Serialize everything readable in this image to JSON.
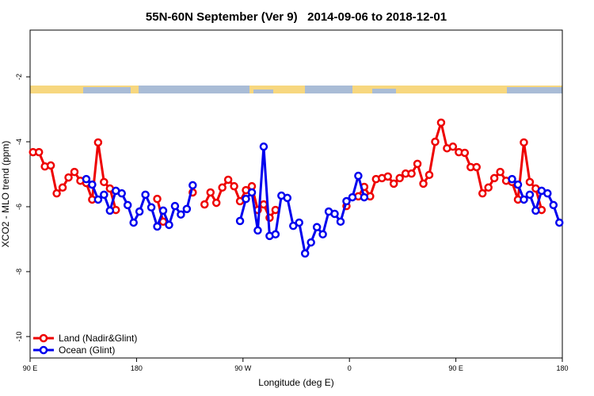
{
  "chart_data": {
    "type": "line",
    "title": "55N-60N September (Ver 9)   2014-09-06 to 2018-12-01",
    "xlabel": "Longitude (deg E)",
    "ylabel": "XCO2 - MLO trend (ppm)",
    "x": [
      92.5,
      97.5,
      102.5,
      107.5,
      112.5,
      117.5,
      122.5,
      127.5,
      132.5,
      137.5,
      142.5,
      147.5,
      152.5,
      157.5,
      162.5,
      167.5,
      172.5,
      177.5,
      182.5,
      187.5,
      192.5,
      197.5,
      202.5,
      207.5,
      212.5,
      217.5,
      222.5,
      227.5,
      232.5,
      237.5,
      242.5,
      247.5,
      252.5,
      257.5,
      262.5,
      267.5,
      272.5,
      277.5,
      282.5,
      287.5,
      292.5,
      297.5,
      302.5,
      307.5,
      312.5,
      317.5,
      322.5,
      327.5,
      332.5,
      337.5,
      342.5,
      347.5,
      352.5,
      357.5,
      362.5,
      367.5,
      372.5,
      377.5,
      382.5,
      387.5,
      392.5,
      397.5,
      402.5,
      407.5,
      412.5,
      417.5,
      422.5,
      427.5,
      432.5,
      437.5,
      442.5,
      447.5,
      452.5,
      457.5,
      462.5,
      467.5,
      472.5,
      477.5,
      482.5,
      487.5,
      492.5,
      497.5,
      502.5,
      507.5,
      512.5,
      517.5,
      522.5,
      527.5,
      532.5,
      537.5
    ],
    "series": [
      {
        "name": "Land (Nadir&Glint)",
        "color": "#ee0000",
        "values": [
          -4.32,
          -4.32,
          -4.76,
          -4.73,
          -5.59,
          -5.41,
          -5.1,
          -4.93,
          -5.2,
          -5.27,
          -5.78,
          -4.02,
          -5.24,
          -5.44,
          -6.1,
          null,
          null,
          null,
          null,
          null,
          null,
          -5.76,
          -6.46,
          null,
          null,
          null,
          null,
          -5.56,
          null,
          -5.93,
          -5.56,
          -5.88,
          -5.41,
          -5.17,
          -5.37,
          -5.83,
          -5.49,
          -5.37,
          -6.1,
          -5.93,
          -6.34,
          -6.1,
          null,
          null,
          null,
          null,
          null,
          null,
          null,
          null,
          null,
          null,
          null,
          -5.98,
          null,
          -5.68,
          -5.39,
          -5.68,
          -5.15,
          -5.12,
          -5.07,
          -5.29,
          -5.12,
          -4.98,
          -4.98,
          -4.68,
          -5.29,
          -5.02,
          -4,
          -3.41,
          -4.2,
          -4.15,
          -4.32,
          -4.34,
          -4.78,
          -4.78,
          -5.59,
          -5.41,
          -5.12,
          -4.93,
          -5.2,
          -5.24,
          -5.78,
          -4.02,
          -5.24,
          -5.44,
          -6.1,
          null,
          null,
          null
        ]
      },
      {
        "name": "Ocean (Glint)",
        "color": "#0000ee",
        "values": [
          null,
          null,
          null,
          null,
          null,
          null,
          null,
          null,
          null,
          -5.15,
          -5.32,
          -5.78,
          -5.63,
          -6.12,
          -5.51,
          -5.59,
          -5.95,
          -6.49,
          -6.15,
          -5.63,
          -6.02,
          -6.61,
          -6.12,
          -6.56,
          -5.98,
          -6.24,
          -6.07,
          -5.34,
          null,
          null,
          null,
          null,
          null,
          null,
          null,
          -6.44,
          -5.76,
          -5.56,
          -6.73,
          -4.15,
          -6.9,
          -6.85,
          -5.66,
          -5.73,
          -6.59,
          -6.49,
          -7.44,
          -7.1,
          -6.63,
          -6.85,
          -6.15,
          -6.22,
          -6.46,
          -5.83,
          -5.71,
          -5.05,
          -5.71,
          null,
          null,
          null,
          null,
          null,
          null,
          null,
          null,
          null,
          null,
          null,
          null,
          null,
          null,
          null,
          null,
          null,
          null,
          null,
          null,
          null,
          null,
          null,
          null,
          -5.15,
          -5.32,
          -5.78,
          -5.63,
          -6.12,
          -5.51,
          -5.59,
          -5.95,
          -6.49
        ]
      }
    ],
    "xlim": [
      90,
      540
    ],
    "xticks": [
      {
        "value": 90,
        "label": "90 E"
      },
      180,
      {
        "value": 270,
        "label": "90 W"
      },
      {
        "value": 360,
        "label": "0"
      },
      {
        "value": 450,
        "label": "90 E"
      },
      {
        "value": 540,
        "label": "180"
      }
    ],
    "ylim": [
      -10.66,
      -0.56
    ],
    "yticks": [
      -10,
      -8,
      -6,
      -4,
      -2
    ],
    "legend": "bottom-left"
  }
}
